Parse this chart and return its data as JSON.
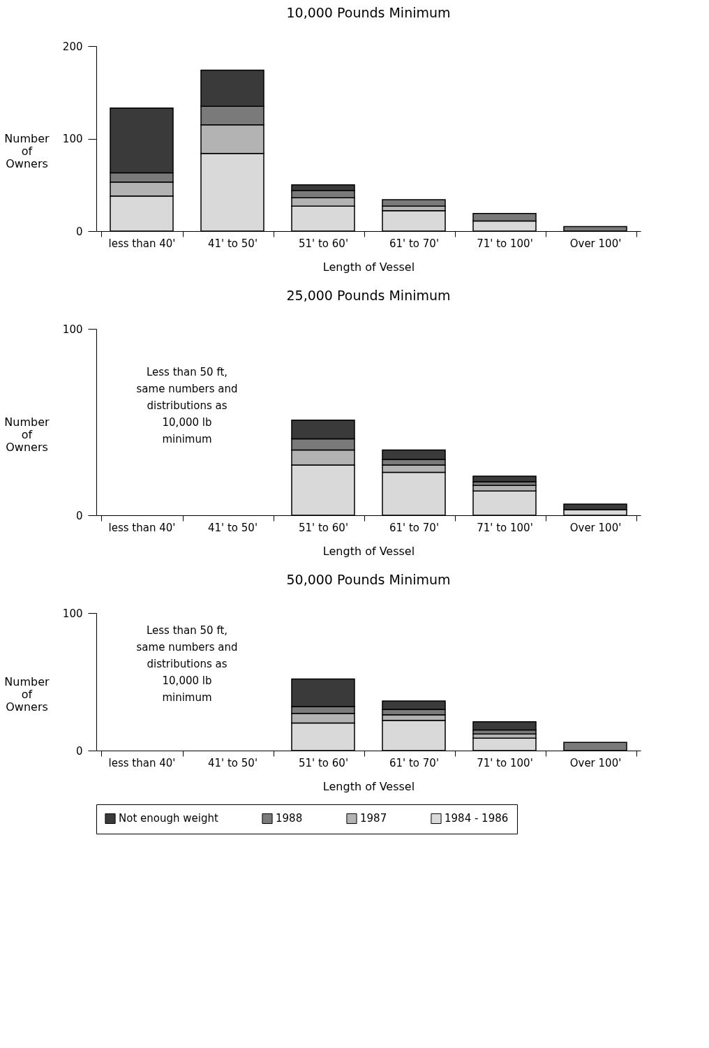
{
  "chart_data": [
    {
      "type": "bar",
      "stacked": true,
      "title": "10,000 Pounds Minimum",
      "xlabel": "Length of Vessel",
      "ylabel": "Number of Owners",
      "categories": [
        "less than 40'",
        "41' to 50'",
        "51' to 60'",
        "61' to 70'",
        "71' to 100'",
        "Over 100'"
      ],
      "ylim": [
        0,
        200
      ],
      "yticks": [
        0,
        100,
        200
      ],
      "grid": false,
      "legend": "bottom",
      "series": [
        {
          "name": "1984 - 1986",
          "color": "#d9d9d9",
          "values": [
            38,
            84,
            27,
            22,
            11,
            null
          ]
        },
        {
          "name": "1987",
          "color": "#b3b3b3",
          "values": [
            15,
            31,
            9,
            5,
            null,
            null
          ]
        },
        {
          "name": "1988",
          "color": "#7a7a7a",
          "values": [
            10,
            20,
            8,
            7,
            8,
            5
          ]
        },
        {
          "name": "Not enough weight",
          "color": "#3a3a3a",
          "values": [
            70,
            39,
            6,
            null,
            null,
            null
          ]
        }
      ]
    },
    {
      "type": "bar",
      "stacked": true,
      "title": "25,000 Pounds Minimum",
      "xlabel": "Length of Vessel",
      "ylabel": "Number of Owners",
      "categories": [
        "less than 40'",
        "41' to 50'",
        "51' to 60'",
        "61' to 70'",
        "71' to 100'",
        "Over 100'"
      ],
      "ylim": [
        0,
        100
      ],
      "yticks": [
        0,
        100
      ],
      "grid": false,
      "legend": "bottom",
      "annotations": [
        "Less than 50 ft,\nsame numbers and\ndistributions as\n10,000 lb\nminimum"
      ],
      "series": [
        {
          "name": "1984 - 1986",
          "color": "#d9d9d9",
          "values": [
            null,
            null,
            27,
            23,
            13,
            3
          ]
        },
        {
          "name": "1987",
          "color": "#b3b3b3",
          "values": [
            null,
            null,
            8,
            4,
            3,
            null
          ]
        },
        {
          "name": "1988",
          "color": "#7a7a7a",
          "values": [
            null,
            null,
            6,
            3,
            2,
            null
          ]
        },
        {
          "name": "Not enough weight",
          "color": "#3a3a3a",
          "values": [
            null,
            null,
            10,
            5,
            3,
            3
          ]
        }
      ]
    },
    {
      "type": "bar",
      "stacked": true,
      "title": "50,000 Pounds Minimum",
      "xlabel": "Length of Vessel",
      "ylabel": "Number of Owners",
      "categories": [
        "less than 40'",
        "41' to 50'",
        "51' to 60'",
        "61' to 70'",
        "71' to 100'",
        "Over 100'"
      ],
      "ylim": [
        0,
        100
      ],
      "yticks": [
        0,
        100
      ],
      "grid": false,
      "legend": "bottom",
      "annotations": [
        "Less than 50 ft,\nsame numbers and\ndistributions as\n10,000 lb\nminimum"
      ],
      "series": [
        {
          "name": "1984 - 1986",
          "color": "#d9d9d9",
          "values": [
            null,
            null,
            20,
            22,
            9,
            null
          ]
        },
        {
          "name": "1987",
          "color": "#b3b3b3",
          "values": [
            null,
            null,
            7,
            4,
            3,
            null
          ]
        },
        {
          "name": "1988",
          "color": "#7a7a7a",
          "values": [
            null,
            null,
            5,
            4,
            3,
            6
          ]
        },
        {
          "name": "Not enough weight",
          "color": "#3a3a3a",
          "values": [
            null,
            null,
            20,
            6,
            6,
            null
          ]
        }
      ]
    }
  ]
}
